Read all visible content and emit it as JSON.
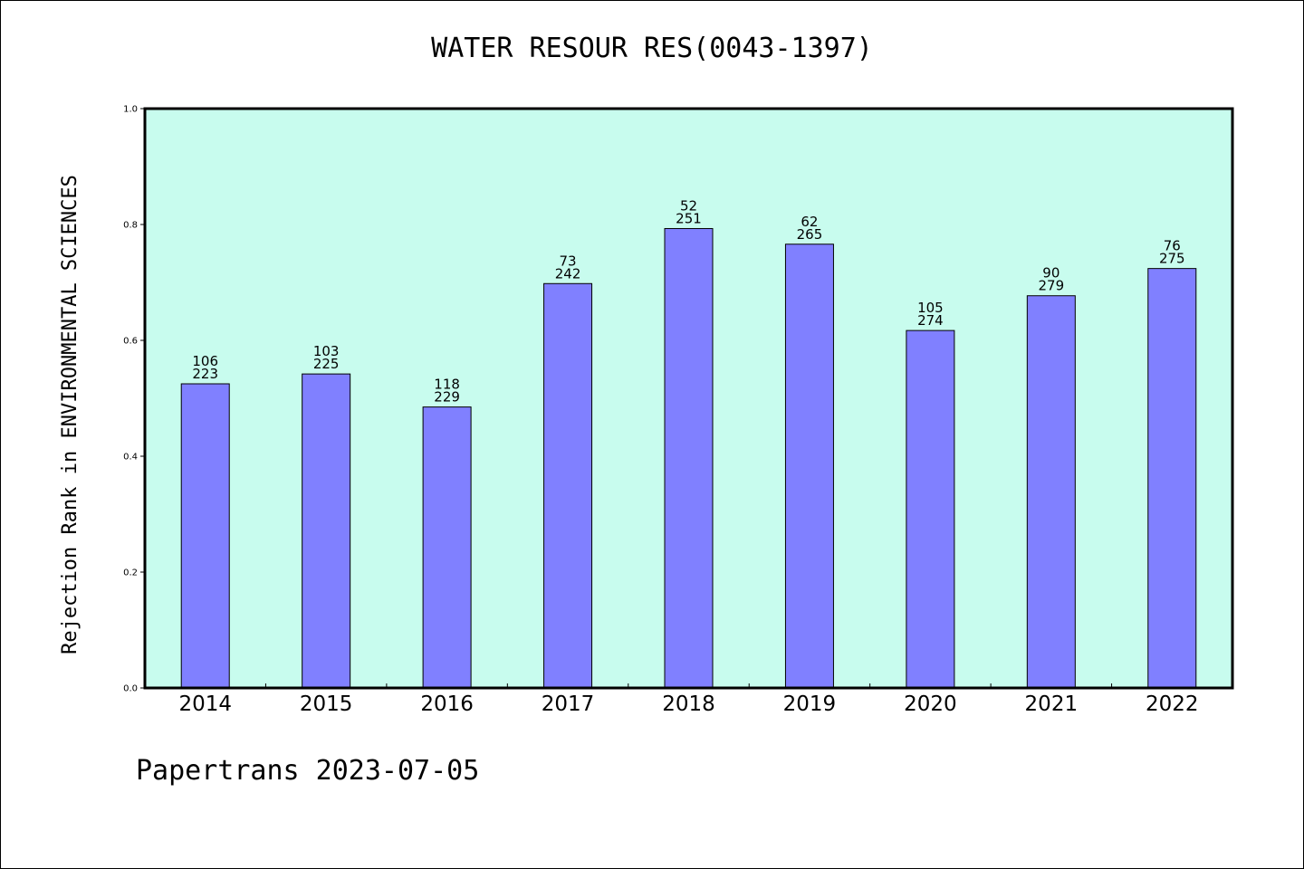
{
  "chart_data": {
    "type": "bar",
    "title": "WATER RESOUR RES(0043-1397)",
    "ylabel": "Rejection Rank in ENVIRONMENTAL SCIENCES",
    "xlabel": "",
    "categories": [
      "2014",
      "2015",
      "2016",
      "2017",
      "2018",
      "2019",
      "2020",
      "2021",
      "2022"
    ],
    "values": [
      0.525,
      0.542,
      0.485,
      0.698,
      0.793,
      0.766,
      0.617,
      0.677,
      0.724
    ],
    "ranks": [
      "106",
      "103",
      "118",
      "73",
      "52",
      "62",
      "105",
      "90",
      "76"
    ],
    "totals": [
      "223",
      "225",
      "229",
      "242",
      "251",
      "265",
      "274",
      "279",
      "275"
    ],
    "ylim": [
      0,
      1.0
    ],
    "yticks": [
      "0.0",
      "0.2",
      "0.4",
      "0.6",
      "0.8",
      "1.0"
    ],
    "grid": false,
    "legend": "none"
  },
  "footer": "Papertrans 2023-07-05",
  "colors": {
    "plot_background": "#c8fcee",
    "bar_fill": "#8080ff",
    "bar_stroke": "#000000"
  }
}
